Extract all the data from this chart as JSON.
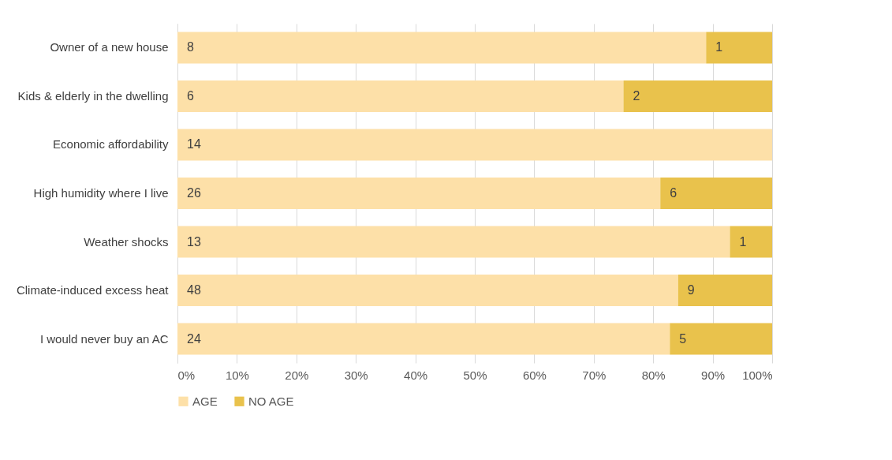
{
  "chart_data": {
    "type": "bar",
    "orientation": "horizontal",
    "stacked": true,
    "categories": [
      "Owner of a new house",
      "Kids & elderly in the dwelling",
      "Economic affordability",
      "High humidity where I live",
      "Weather shocks",
      "Climate-induced excess heat",
      "I would never buy an AC"
    ],
    "series": [
      {
        "name": "AGE",
        "color": "#fde0a8",
        "values": [
          88.9,
          75,
          100,
          81.2,
          92.9,
          84.2,
          82.8
        ]
      },
      {
        "name": "NO AGE",
        "color": "#e9c24c",
        "values": [
          11.1,
          25,
          0,
          18.8,
          7.1,
          15.8,
          17.2
        ]
      }
    ],
    "annotations": [
      {
        "text": "8",
        "x": 0,
        "y": "Owner of a new house"
      },
      {
        "text": "6",
        "x": 0,
        "y": "Kids & elderly in the dwelling"
      },
      {
        "text": "14",
        "x": 0,
        "y": "Economic affordability"
      },
      {
        "text": "26",
        "x": 0,
        "y": "High humidity where I live"
      },
      {
        "text": "13",
        "x": 0,
        "y": "Weather shocks"
      },
      {
        "text": "48",
        "x": 0,
        "y": "Climate-induced excess heat"
      },
      {
        "text": "24",
        "x": 0,
        "y": "I would never buy an AC"
      },
      {
        "text": "1",
        "x": 88.9,
        "y": "Owner of a new house"
      },
      {
        "text": "2",
        "x": 75,
        "y": "Kids & elderly in the dwelling"
      },
      {
        "text": "6",
        "x": 81.2,
        "y": "High humidity where I live"
      },
      {
        "text": "1",
        "x": 92.9,
        "y": "Weather shocks"
      },
      {
        "text": "9",
        "x": 84.2,
        "y": "Climate-induced excess heat"
      },
      {
        "text": "5",
        "x": 82.8,
        "y": "I would never buy an AC"
      }
    ],
    "xlim": [
      0,
      100
    ],
    "xticks": [
      {
        "value": 0,
        "label": "0%"
      },
      {
        "value": 10,
        "label": "10%"
      },
      {
        "value": 20,
        "label": "20%"
      },
      {
        "value": 30,
        "label": "30%"
      },
      {
        "value": 40,
        "label": "40%"
      },
      {
        "value": 50,
        "label": "50%"
      },
      {
        "value": 60,
        "label": "60%"
      },
      {
        "value": 70,
        "label": "70%"
      },
      {
        "value": 80,
        "label": "80%"
      },
      {
        "value": 90,
        "label": "90%"
      },
      {
        "value": 100,
        "label": "100%"
      }
    ],
    "grid": "x",
    "legend": "bottom"
  }
}
